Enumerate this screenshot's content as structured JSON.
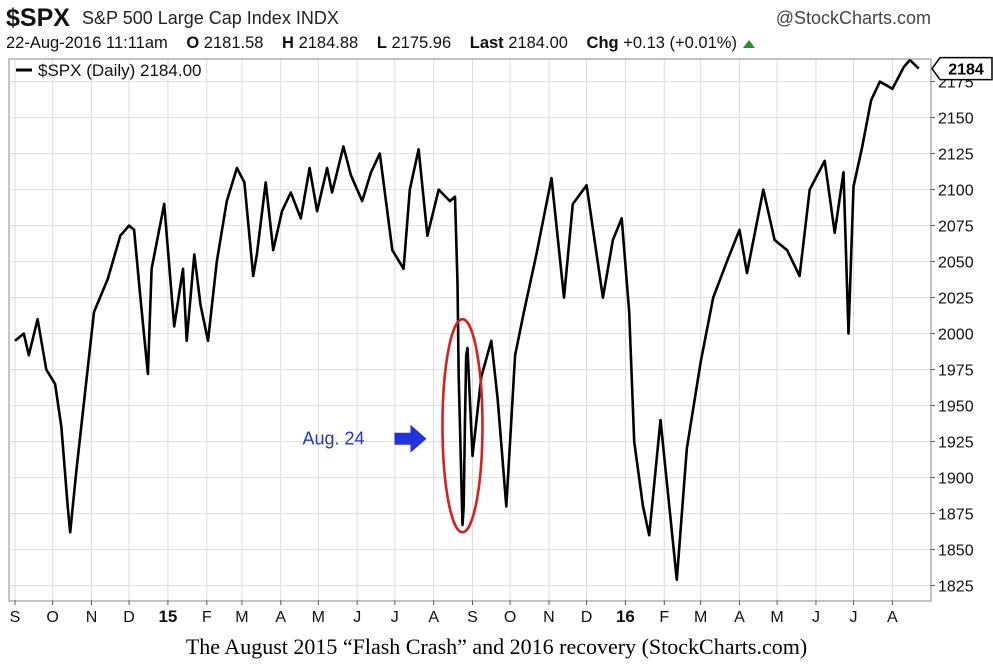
{
  "header": {
    "symbol": "$SPX",
    "name": "S&P 500 Large Cap Index INDX",
    "brand": "@StockCharts.com",
    "datetime": "22-Aug-2016 11:11am",
    "open_label": "O",
    "open_value": "2181.58",
    "high_label": "H",
    "high_value": "2184.88",
    "low_label": "L",
    "low_value": "2175.96",
    "last_label": "Last",
    "last_value": "2184.00",
    "chg_label": "Chg",
    "chg_value": "+0.13 (+0.01%)"
  },
  "caption": "The August 2015 “Flash Crash” and 2016 recovery (StockCharts.com)",
  "colors": {
    "line": "#000000",
    "ellipse": "#d62020",
    "annotation": "#2233dd",
    "grid": "#dddddd",
    "up": "#2b8a2b"
  },
  "chart_data": {
    "type": "line",
    "title": "$SPX S&P 500 Large Cap Index INDX",
    "legend": "$SPX (Daily) 2184.00",
    "legend_position": "top-left",
    "last_value_label": "2184",
    "grid": true,
    "ylim": [
      1815,
      2190
    ],
    "yticks": [
      1825,
      1850,
      1875,
      1900,
      1925,
      1950,
      1975,
      2000,
      2025,
      2050,
      2075,
      2100,
      2125,
      2150,
      2175
    ],
    "x_labels": [
      "S",
      "O",
      "N",
      "D",
      "15",
      "F",
      "M",
      "A",
      "M",
      "J",
      "J",
      "A",
      "S",
      "O",
      "N",
      "D",
      "16",
      "F",
      "M",
      "A",
      "M",
      "J",
      "J",
      "A"
    ],
    "x_bold_labels": [
      "15",
      "16"
    ],
    "annotation": {
      "text": "Aug. 24",
      "target_date": "2015-08-24",
      "target_value": 1867
    },
    "series": [
      {
        "name": "$SPX (Daily)",
        "points": [
          [
            "2014-09-01",
            1995
          ],
          [
            "2014-09-08",
            2000
          ],
          [
            "2014-09-12",
            1985
          ],
          [
            "2014-09-19",
            2010
          ],
          [
            "2014-09-26",
            1975
          ],
          [
            "2014-10-03",
            1965
          ],
          [
            "2014-10-08",
            1935
          ],
          [
            "2014-10-13",
            1880
          ],
          [
            "2014-10-15",
            1862
          ],
          [
            "2014-10-20",
            1905
          ],
          [
            "2014-10-27",
            1960
          ],
          [
            "2014-11-03",
            2015
          ],
          [
            "2014-11-14",
            2038
          ],
          [
            "2014-11-24",
            2068
          ],
          [
            "2014-12-01",
            2075
          ],
          [
            "2014-12-05",
            2072
          ],
          [
            "2014-12-10",
            2025
          ],
          [
            "2014-12-16",
            1972
          ],
          [
            "2014-12-19",
            2045
          ],
          [
            "2014-12-29",
            2090
          ],
          [
            "2015-01-06",
            2005
          ],
          [
            "2015-01-13",
            2045
          ],
          [
            "2015-01-16",
            1995
          ],
          [
            "2015-01-22",
            2055
          ],
          [
            "2015-01-27",
            2020
          ],
          [
            "2015-02-02",
            1995
          ],
          [
            "2015-02-09",
            2050
          ],
          [
            "2015-02-17",
            2092
          ],
          [
            "2015-02-25",
            2115
          ],
          [
            "2015-03-03",
            2105
          ],
          [
            "2015-03-10",
            2040
          ],
          [
            "2015-03-13",
            2055
          ],
          [
            "2015-03-20",
            2105
          ],
          [
            "2015-03-26",
            2058
          ],
          [
            "2015-04-02",
            2085
          ],
          [
            "2015-04-09",
            2098
          ],
          [
            "2015-04-17",
            2080
          ],
          [
            "2015-04-24",
            2115
          ],
          [
            "2015-04-30",
            2085
          ],
          [
            "2015-05-08",
            2115
          ],
          [
            "2015-05-12",
            2098
          ],
          [
            "2015-05-21",
            2130
          ],
          [
            "2015-05-27",
            2110
          ],
          [
            "2015-06-05",
            2092
          ],
          [
            "2015-06-12",
            2112
          ],
          [
            "2015-06-19",
            2125
          ],
          [
            "2015-06-29",
            2058
          ],
          [
            "2015-07-08",
            2045
          ],
          [
            "2015-07-13",
            2100
          ],
          [
            "2015-07-20",
            2128
          ],
          [
            "2015-07-27",
            2068
          ],
          [
            "2015-08-05",
            2100
          ],
          [
            "2015-08-14",
            2092
          ],
          [
            "2015-08-18",
            2095
          ],
          [
            "2015-08-20",
            2035
          ],
          [
            "2015-08-21",
            1970
          ],
          [
            "2015-08-24",
            1867
          ],
          [
            "2015-08-25",
            1880
          ],
          [
            "2015-08-26",
            1940
          ],
          [
            "2015-08-27",
            1985
          ],
          [
            "2015-08-28",
            1990
          ],
          [
            "2015-09-01",
            1915
          ],
          [
            "2015-09-08",
            1970
          ],
          [
            "2015-09-16",
            1995
          ],
          [
            "2015-09-21",
            1955
          ],
          [
            "2015-09-28",
            1880
          ],
          [
            "2015-10-05",
            1985
          ],
          [
            "2015-10-12",
            2015
          ],
          [
            "2015-10-22",
            2055
          ],
          [
            "2015-11-03",
            2108
          ],
          [
            "2015-11-13",
            2025
          ],
          [
            "2015-11-20",
            2090
          ],
          [
            "2015-12-01",
            2103
          ],
          [
            "2015-12-14",
            2025
          ],
          [
            "2015-12-22",
            2065
          ],
          [
            "2015-12-29",
            2080
          ],
          [
            "2016-01-04",
            2015
          ],
          [
            "2016-01-08",
            1925
          ],
          [
            "2016-01-15",
            1880
          ],
          [
            "2016-01-20",
            1860
          ],
          [
            "2016-01-29",
            1940
          ],
          [
            "2016-02-05",
            1880
          ],
          [
            "2016-02-11",
            1829
          ],
          [
            "2016-02-19",
            1920
          ],
          [
            "2016-03-01",
            1980
          ],
          [
            "2016-03-11",
            2025
          ],
          [
            "2016-03-22",
            2050
          ],
          [
            "2016-04-01",
            2072
          ],
          [
            "2016-04-07",
            2042
          ],
          [
            "2016-04-20",
            2100
          ],
          [
            "2016-04-29",
            2065
          ],
          [
            "2016-05-09",
            2058
          ],
          [
            "2016-05-19",
            2040
          ],
          [
            "2016-05-27",
            2100
          ],
          [
            "2016-06-08",
            2120
          ],
          [
            "2016-06-16",
            2070
          ],
          [
            "2016-06-23",
            2112
          ],
          [
            "2016-06-27",
            2000
          ],
          [
            "2016-07-01",
            2102
          ],
          [
            "2016-07-08",
            2130
          ],
          [
            "2016-07-15",
            2162
          ],
          [
            "2016-07-22",
            2175
          ],
          [
            "2016-08-01",
            2170
          ],
          [
            "2016-08-10",
            2185
          ],
          [
            "2016-08-15",
            2190
          ],
          [
            "2016-08-22",
            2184
          ]
        ]
      }
    ]
  }
}
